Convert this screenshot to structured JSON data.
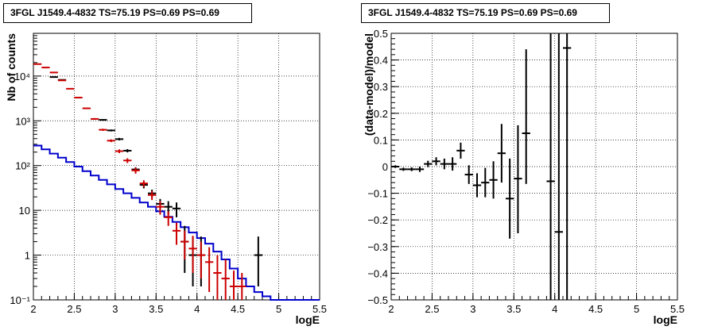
{
  "chart_data": [
    {
      "type": "step-line-errorbar",
      "title": "3FGL J1549.4-4832 TS=75.19 PS=0.69 PS=0.69",
      "xlabel": "logE",
      "ylabel": "Nb of counts",
      "xlim": [
        2,
        5.5
      ],
      "ylim": [
        0.1,
        90000
      ],
      "yscale": "log",
      "grid": true,
      "x_ticks": [
        2,
        2.5,
        3,
        3.5,
        4,
        4.5,
        5,
        5.5
      ],
      "x_tick_labels": [
        "2",
        "2.5",
        "3",
        "3.5",
        "4",
        "4.5",
        "5",
        "5.5"
      ],
      "y_ticks": [
        0.1,
        1,
        10,
        100,
        1000,
        10000
      ],
      "y_tick_labels": [
        "10⁻¹",
        "1",
        "10",
        "10²",
        "10³",
        "10⁴"
      ],
      "bin_edges": [
        2.0,
        2.1,
        2.2,
        2.3,
        2.4,
        2.5,
        2.6,
        2.7,
        2.8,
        2.9,
        3.0,
        3.1,
        3.2,
        3.3,
        3.4,
        3.5,
        3.6,
        3.7,
        3.8,
        3.9,
        4.0,
        4.1,
        4.2,
        4.3,
        4.4,
        4.5,
        4.6,
        4.7,
        4.8,
        4.9,
        5.0,
        5.1,
        5.2,
        5.3,
        5.4,
        5.5
      ],
      "series": [
        {
          "color": "#0000cc",
          "style": "step",
          "values": [
            280,
            230,
            185,
            150,
            120,
            95,
            75,
            60,
            48,
            38,
            30,
            24,
            19,
            15,
            12,
            9.5,
            7.2,
            5.5,
            4.2,
            3.2,
            2.4,
            1.8,
            1.2,
            0.8,
            0.5,
            0.3,
            0.2,
            0.15,
            0.12,
            0.1,
            0.1,
            0.1,
            0.1,
            0.1,
            0.1
          ]
        },
        {
          "color": "#cc0000",
          "style": "errorbar",
          "x": [
            2.05,
            2.15,
            2.25,
            2.35,
            2.45,
            2.55,
            2.65,
            2.75,
            2.85,
            2.95,
            3.05,
            3.15,
            3.25,
            3.35,
            3.45,
            3.55,
            3.65,
            3.75,
            3.85,
            3.95,
            4.05,
            4.15,
            4.25,
            4.35,
            4.45,
            4.55
          ],
          "y": [
            18500,
            15500,
            12000,
            8000,
            5200,
            3300,
            1900,
            1100,
            630,
            360,
            210,
            130,
            78,
            40,
            22,
            12,
            7,
            3.5,
            2.0,
            1.4,
            1.0,
            0.7,
            0.4,
            0.3,
            0.2,
            0.2
          ],
          "yerr_low": [
            400,
            350,
            300,
            200,
            150,
            110,
            70,
            50,
            35,
            25,
            20,
            16,
            12,
            7,
            5,
            4,
            2.5,
            1.8,
            1.2,
            1.0,
            0.7,
            0.55,
            0.3,
            0.25,
            0.1,
            0.1
          ],
          "yerr_high": [
            400,
            350,
            300,
            200,
            150,
            110,
            70,
            50,
            35,
            25,
            20,
            16,
            12,
            7,
            5,
            4,
            2.5,
            1.8,
            1.5,
            1.3,
            1.0,
            0.8,
            0.6,
            0.5,
            0.25,
            0.2
          ]
        },
        {
          "color": "#000000",
          "style": "errorbar",
          "x": [
            2.25,
            2.35,
            2.85,
            2.95,
            3.05,
            3.15,
            3.25,
            3.35,
            3.45,
            3.55,
            3.65,
            3.75,
            3.85,
            3.95,
            4.05,
            4.75
          ],
          "y": [
            9500,
            8200,
            1050,
            610,
            390,
            215,
            82,
            37,
            24,
            14,
            12,
            11,
            2.0,
            1.0,
            1.0,
            1.0
          ],
          "yerr_low": [
            200,
            180,
            40,
            30,
            25,
            18,
            10,
            6,
            5,
            4,
            4,
            4,
            1.6,
            0.8,
            0.8,
            0.8
          ],
          "yerr_high": [
            200,
            180,
            40,
            30,
            25,
            18,
            10,
            6,
            5,
            4,
            4,
            4,
            2.5,
            1.6,
            1.6,
            1.6
          ]
        }
      ]
    },
    {
      "type": "errorbar",
      "title": "3FGL J1549.4-4832 TS=75.19 PS=0.69 PS=0.69",
      "xlabel": "logE",
      "ylabel": "(data-model)/model",
      "xlim": [
        2,
        5.5
      ],
      "ylim": [
        -0.5,
        0.5
      ],
      "grid": true,
      "x_ticks": [
        2,
        2.5,
        3,
        3.5,
        4,
        4.5,
        5,
        5.5
      ],
      "x_tick_labels": [
        "2",
        "2.5",
        "3",
        "3.5",
        "4",
        "4.5",
        "5",
        "5.5"
      ],
      "y_ticks": [
        -0.5,
        -0.4,
        -0.3,
        -0.2,
        -0.1,
        0,
        0.1,
        0.2,
        0.3,
        0.4,
        0.5
      ],
      "y_tick_labels": [
        "−0.5",
        "−0.4",
        "−0.3",
        "−0.2",
        "−0.1",
        "0",
        "0.1",
        "0.2",
        "0.3",
        "0.4",
        "0.5"
      ],
      "series": [
        {
          "color": "#000000",
          "x": [
            2.05,
            2.15,
            2.25,
            2.35,
            2.45,
            2.55,
            2.65,
            2.75,
            2.85,
            2.95,
            3.05,
            3.15,
            3.25,
            3.35,
            3.45,
            3.55,
            3.65,
            3.95,
            4.05,
            4.15
          ],
          "y": [
            0.0,
            -0.01,
            -0.01,
            -0.01,
            0.01,
            0.02,
            0.01,
            0.01,
            0.06,
            -0.03,
            -0.07,
            -0.06,
            -0.05,
            0.05,
            -0.12,
            -0.045,
            0.125,
            -0.055,
            -0.245,
            0.445
          ],
          "yerr_low": [
            0.005,
            0.006,
            0.007,
            0.01,
            0.012,
            0.015,
            0.02,
            0.025,
            0.03,
            0.035,
            0.045,
            0.055,
            0.07,
            0.11,
            0.15,
            0.205,
            0.19,
            0.9,
            0.9,
            0.95
          ],
          "yerr_high": [
            0.005,
            0.006,
            0.007,
            0.01,
            0.012,
            0.015,
            0.02,
            0.025,
            0.03,
            0.035,
            0.045,
            0.055,
            0.07,
            0.11,
            0.15,
            0.2,
            0.315,
            0.9,
            0.9,
            0.5
          ]
        }
      ]
    }
  ]
}
